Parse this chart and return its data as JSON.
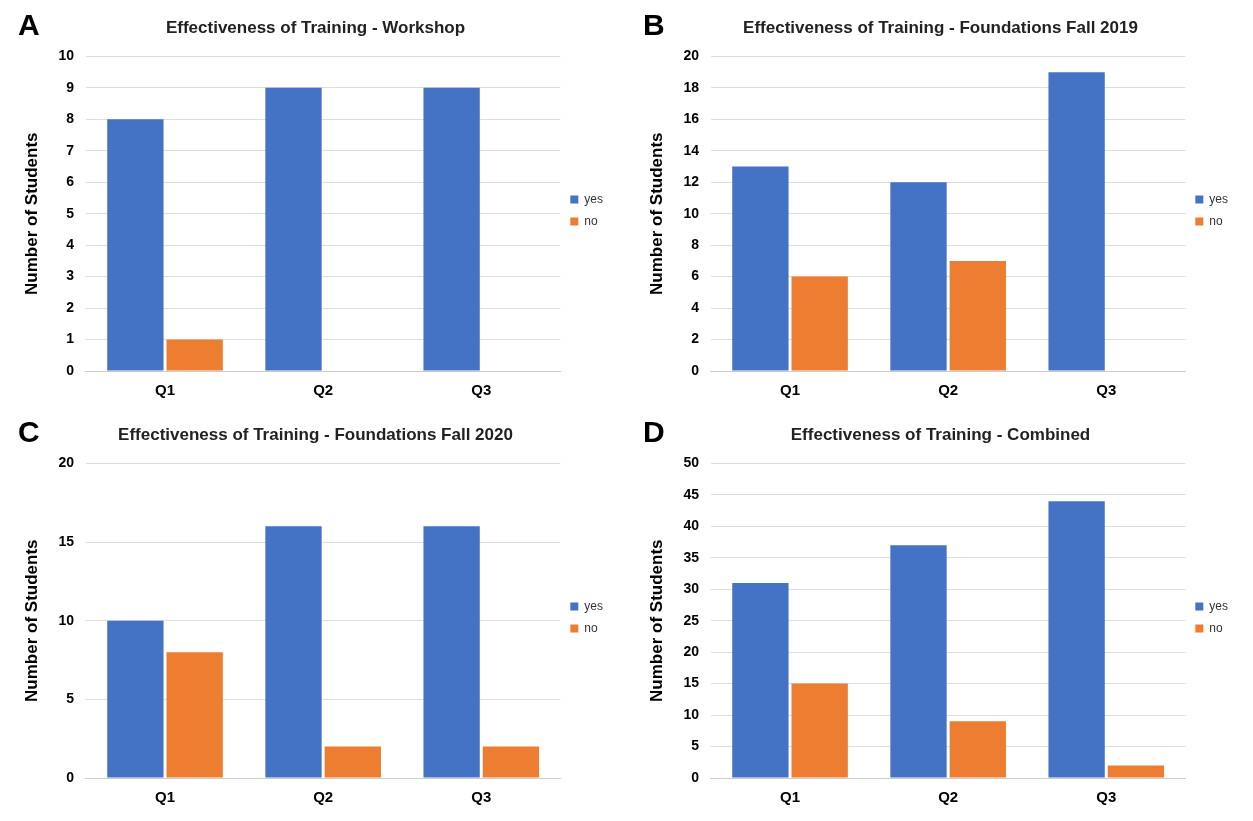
{
  "chart_data": [
    {
      "type": "bar",
      "title": "Effectiveness of Training - Workshop",
      "annotations": [
        "A"
      ],
      "ylabel": "Number of Students",
      "categories": [
        "Q1",
        "Q2",
        "Q3"
      ],
      "series": [
        {
          "name": "yes",
          "color": "#4472c4",
          "values": [
            8,
            9,
            9
          ]
        },
        {
          "name": "no",
          "color": "#ed7d31",
          "values": [
            1,
            0,
            0
          ]
        }
      ],
      "ylim": [
        0,
        10
      ],
      "yticks": [
        0,
        1,
        2,
        3,
        4,
        5,
        6,
        7,
        8,
        9,
        10
      ],
      "grid": "y",
      "legend": "right"
    },
    {
      "type": "bar",
      "title": "Effectiveness of Training - Foundations Fall 2019",
      "annotations": [
        "B"
      ],
      "ylabel": "Number of Students",
      "categories": [
        "Q1",
        "Q2",
        "Q3"
      ],
      "series": [
        {
          "name": "yes",
          "color": "#4472c4",
          "values": [
            13,
            12,
            19
          ]
        },
        {
          "name": "no",
          "color": "#ed7d31",
          "values": [
            6,
            7,
            0
          ]
        }
      ],
      "ylim": [
        0,
        20
      ],
      "yticks": [
        0,
        2,
        4,
        6,
        8,
        10,
        12,
        14,
        16,
        18,
        20
      ],
      "grid": "y",
      "legend": "right"
    },
    {
      "type": "bar",
      "title": "Effectiveness of Training - Foundations Fall 2020",
      "annotations": [
        "C"
      ],
      "ylabel": "Number of Students",
      "categories": [
        "Q1",
        "Q2",
        "Q3"
      ],
      "series": [
        {
          "name": "yes",
          "color": "#4472c4",
          "values": [
            10,
            16,
            16
          ]
        },
        {
          "name": "no",
          "color": "#ed7d31",
          "values": [
            8,
            2,
            2
          ]
        }
      ],
      "ylim": [
        0,
        20
      ],
      "yticks": [
        0,
        5,
        10,
        15,
        20
      ],
      "grid": "y",
      "legend": "right"
    },
    {
      "type": "bar",
      "title": "Effectiveness of Training - Combined",
      "annotations": [
        "D"
      ],
      "ylabel": "Number of Students",
      "categories": [
        "Q1",
        "Q2",
        "Q3"
      ],
      "series": [
        {
          "name": "yes",
          "color": "#4472c4",
          "values": [
            31,
            37,
            44
          ]
        },
        {
          "name": "no",
          "color": "#ed7d31",
          "values": [
            15,
            9,
            2
          ]
        }
      ],
      "ylim": [
        0,
        50
      ],
      "yticks": [
        0,
        5,
        10,
        15,
        20,
        25,
        30,
        35,
        40,
        45,
        50
      ],
      "grid": "y",
      "legend": "right"
    }
  ]
}
